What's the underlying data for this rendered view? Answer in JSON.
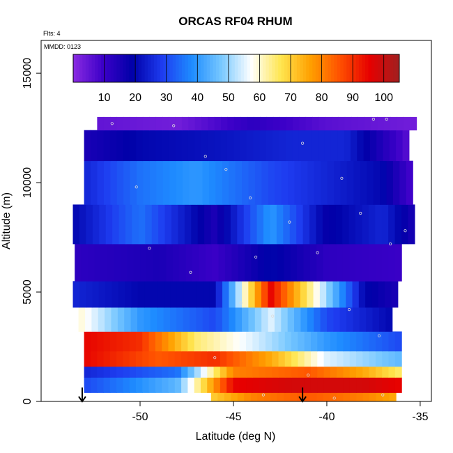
{
  "chart_data": {
    "type": "heatmap",
    "title": "ORCAS RF04 RHUM",
    "flights_note": "Flts: 4",
    "date_note": "MMDD: 0123",
    "xlabel": "Latitude (deg N)",
    "ylabel": "Altitude (m)",
    "xlim": [
      -55.3,
      -34.4
    ],
    "ylim": [
      0,
      16500
    ],
    "x_ticks": [
      -50,
      -45,
      -40,
      -35
    ],
    "x_tick_labels": [
      "-50",
      "-45",
      "-40",
      "-35"
    ],
    "y_ticks": [
      0,
      5000,
      10000,
      15000
    ],
    "y_tick_labels": [
      "0",
      "5000",
      "10000",
      "15000"
    ],
    "colorbar": {
      "min": 0,
      "max": 105,
      "ticks": [
        10,
        20,
        30,
        40,
        50,
        60,
        70,
        80,
        90,
        100
      ],
      "tick_labels": [
        "10",
        "20",
        "30",
        "40",
        "50",
        "60",
        "70",
        "80",
        "90",
        "100"
      ],
      "colors": [
        "#8a2be2",
        "#3c00c8",
        "#0000a8",
        "#1e3cf0",
        "#1e8cff",
        "#78c8ff",
        "#ffffff",
        "#ffe650",
        "#ffa000",
        "#ff5000",
        "#e60000",
        "#a02020"
      ]
    },
    "markers": [
      {
        "label": "takeoff-arrow",
        "x": -53.1
      },
      {
        "label": "landing-arrow",
        "x": -41.3
      }
    ],
    "bands": [
      {
        "alt": [
          0,
          400
        ],
        "lat": [
          -46.2,
          -36.3
        ],
        "values": [
          [
            -46.2,
            70
          ],
          [
            -44,
            80
          ],
          [
            -41,
            85
          ],
          [
            -38,
            80
          ],
          [
            -36.3,
            75
          ]
        ]
      },
      {
        "alt": [
          400,
          1100
        ],
        "lat": [
          -53.0,
          -36.0
        ],
        "values": [
          [
            -53,
            30
          ],
          [
            -48,
            45
          ],
          [
            -45,
            95
          ],
          [
            -42,
            98
          ],
          [
            -38,
            98
          ],
          [
            -36,
            95
          ]
        ]
      },
      {
        "alt": [
          1100,
          1600
        ],
        "lat": [
          -53.0,
          -36.0
        ],
        "values": [
          [
            -53,
            25
          ],
          [
            -48,
            35
          ],
          [
            -45,
            80
          ],
          [
            -41,
            85
          ],
          [
            -38,
            75
          ],
          [
            -36,
            65
          ]
        ]
      },
      {
        "alt": [
          1600,
          2300
        ],
        "lat": [
          -53.0,
          -36.0
        ],
        "values": [
          [
            -53,
            95
          ],
          [
            -49,
            85
          ],
          [
            -46,
            90
          ],
          [
            -43,
            75
          ],
          [
            -40,
            55
          ],
          [
            -36,
            45
          ]
        ]
      },
      {
        "alt": [
          2300,
          3200
        ],
        "lat": [
          -53.0,
          -36.0
        ],
        "values": [
          [
            -53,
            95
          ],
          [
            -50,
            90
          ],
          [
            -47,
            65
          ],
          [
            -44,
            55
          ],
          [
            -40,
            40
          ],
          [
            -36,
            30
          ]
        ]
      },
      {
        "alt": [
          3200,
          4300
        ],
        "lat": [
          -53.3,
          -36.5
        ],
        "values": [
          [
            -53.3,
            60
          ],
          [
            -50,
            40
          ],
          [
            -46,
            30
          ],
          [
            -43,
            55
          ],
          [
            -40,
            30
          ],
          [
            -36.5,
            20
          ]
        ]
      },
      {
        "alt": [
          4300,
          5500
        ],
        "lat": [
          -53.6,
          -36.2
        ],
        "values": [
          [
            -53.6,
            25
          ],
          [
            -50,
            20
          ],
          [
            -46,
            20
          ],
          [
            -43,
            95
          ],
          [
            -41,
            65
          ],
          [
            -38,
            20
          ],
          [
            -36.2,
            15
          ]
        ]
      },
      {
        "alt": [
          5500,
          7200
        ],
        "lat": [
          -53.5,
          -36.0
        ],
        "values": [
          [
            -53.5,
            12
          ],
          [
            -49,
            15
          ],
          [
            -46,
            10
          ],
          [
            -43,
            20
          ],
          [
            -40,
            12
          ],
          [
            -36,
            10
          ]
        ]
      },
      {
        "alt": [
          7200,
          9000
        ],
        "lat": [
          -53.6,
          -35.3
        ],
        "values": [
          [
            -53.6,
            20
          ],
          [
            -50,
            35
          ],
          [
            -46,
            15
          ],
          [
            -43,
            40
          ],
          [
            -40,
            18
          ],
          [
            -37,
            25
          ],
          [
            -35.3,
            15
          ]
        ]
      },
      {
        "alt": [
          9000,
          11000
        ],
        "lat": [
          -53.0,
          -35.4
        ],
        "values": [
          [
            -53,
            25
          ],
          [
            -50,
            35
          ],
          [
            -47,
            40
          ],
          [
            -43,
            30
          ],
          [
            -40,
            25
          ],
          [
            -37,
            20
          ],
          [
            -35.4,
            8
          ]
        ]
      },
      {
        "alt": [
          11000,
          12400
        ],
        "lat": [
          -53.0,
          -35.6
        ],
        "values": [
          [
            -53,
            15
          ],
          [
            -50,
            20
          ],
          [
            -46,
            22
          ],
          [
            -42,
            25
          ],
          [
            -39,
            25
          ],
          [
            -35.6,
            6
          ]
        ]
      },
      {
        "alt": [
          12400,
          13000
        ],
        "lat": [
          -52.3,
          -35.2
        ],
        "values": [
          [
            -52.3,
            5
          ],
          [
            -48,
            3
          ],
          [
            -44,
            12
          ],
          [
            -40,
            6
          ],
          [
            -35.2,
            3
          ]
        ]
      }
    ]
  }
}
